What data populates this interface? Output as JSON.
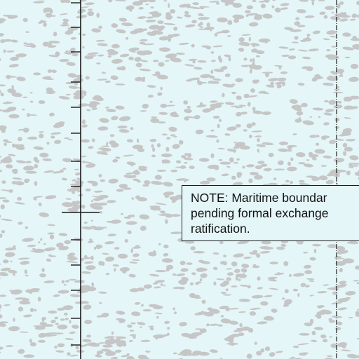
{
  "map": {
    "background_color": "#e4f6f8",
    "sea_ice_pattern_color": "#c6c6c6",
    "line_color": "#1a1a1a"
  },
  "note": {
    "line1": "NOTE: Maritime boundar",
    "line2": "pending formal exchange",
    "line3": "ratification."
  }
}
